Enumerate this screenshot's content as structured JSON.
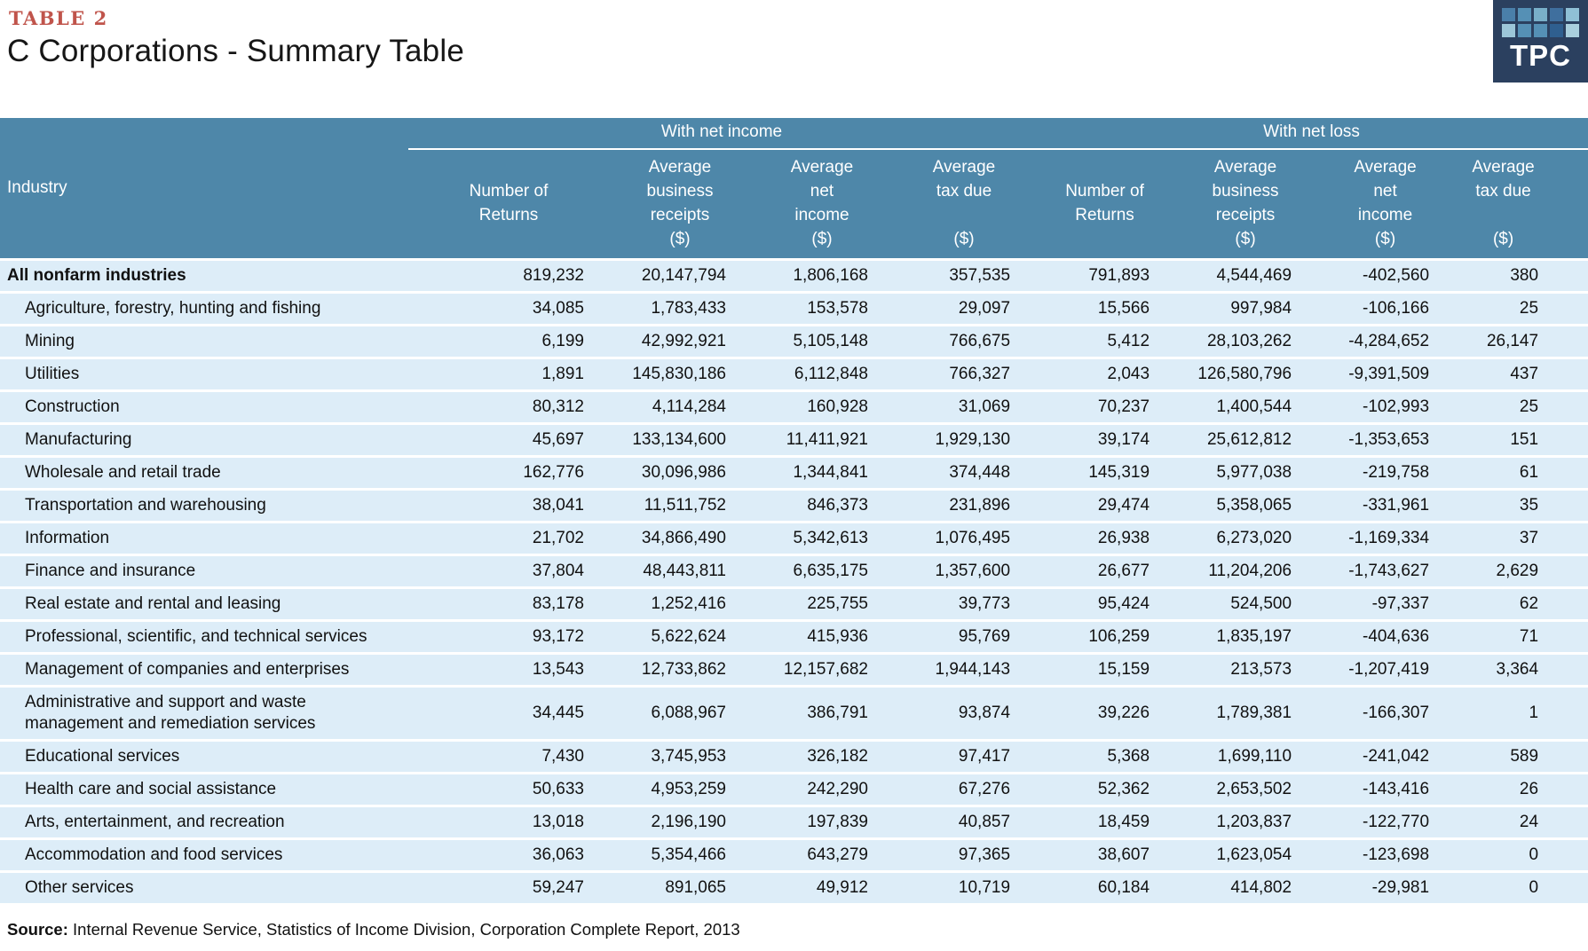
{
  "page": {
    "table_label": "TABLE 2",
    "title": "C Corporations - Summary Table"
  },
  "logo": {
    "text": "TPC",
    "bg": "#2b405f",
    "squares": [
      "#4a7fa9",
      "#5590b5",
      "#79afc9",
      "#3f6f9e",
      "#8fc0d6",
      "#9cc6d8",
      "#5590b5",
      "#5590b5",
      "#2f5f8f",
      "#a9cfdd"
    ]
  },
  "colors": {
    "header_bg": "#4e87a9",
    "row_bg": "#ddedf8",
    "accent_red": "#c0544b"
  },
  "table": {
    "industry_header": "Industry",
    "groups": [
      {
        "label": "With net income"
      },
      {
        "label": "With net loss"
      }
    ],
    "columns": [
      {
        "lines": [
          "",
          "Number of",
          "Returns",
          ""
        ]
      },
      {
        "lines": [
          "Average",
          "business",
          "receipts",
          "($)"
        ]
      },
      {
        "lines": [
          "Average",
          "net",
          "income",
          "($)"
        ]
      },
      {
        "lines": [
          "Average",
          "tax due",
          "",
          "($)"
        ]
      },
      {
        "lines": [
          "",
          "Number of",
          "Returns",
          ""
        ]
      },
      {
        "lines": [
          "Average",
          "business",
          "receipts",
          "($)"
        ]
      },
      {
        "lines": [
          "Average",
          "net",
          "income",
          "($)"
        ]
      },
      {
        "lines": [
          "Average",
          "tax due",
          "",
          "($)"
        ]
      }
    ],
    "rows": [
      {
        "industry": "All nonfarm industries",
        "indent": false,
        "bold": true,
        "values": [
          "819,232",
          "20,147,794",
          "1,806,168",
          "357,535",
          "791,893",
          "4,544,469",
          "-402,560",
          "380"
        ]
      },
      {
        "industry": "Agriculture, forestry, hunting and fishing",
        "indent": true,
        "bold": false,
        "values": [
          "34,085",
          "1,783,433",
          "153,578",
          "29,097",
          "15,566",
          "997,984",
          "-106,166",
          "25"
        ]
      },
      {
        "industry": "Mining",
        "indent": true,
        "bold": false,
        "values": [
          "6,199",
          "42,992,921",
          "5,105,148",
          "766,675",
          "5,412",
          "28,103,262",
          "-4,284,652",
          "26,147"
        ]
      },
      {
        "industry": "Utilities",
        "indent": true,
        "bold": false,
        "values": [
          "1,891",
          "145,830,186",
          "6,112,848",
          "766,327",
          "2,043",
          "126,580,796",
          "-9,391,509",
          "437"
        ]
      },
      {
        "industry": "Construction",
        "indent": true,
        "bold": false,
        "values": [
          "80,312",
          "4,114,284",
          "160,928",
          "31,069",
          "70,237",
          "1,400,544",
          "-102,993",
          "25"
        ]
      },
      {
        "industry": "Manufacturing",
        "indent": true,
        "bold": false,
        "values": [
          "45,697",
          "133,134,600",
          "11,411,921",
          "1,929,130",
          "39,174",
          "25,612,812",
          "-1,353,653",
          "151"
        ]
      },
      {
        "industry": "Wholesale and retail trade",
        "indent": true,
        "bold": false,
        "values": [
          "162,776",
          "30,096,986",
          "1,344,841",
          "374,448",
          "145,319",
          "5,977,038",
          "-219,758",
          "61"
        ]
      },
      {
        "industry": "Transportation and warehousing",
        "indent": true,
        "bold": false,
        "values": [
          "38,041",
          "11,511,752",
          "846,373",
          "231,896",
          "29,474",
          "5,358,065",
          "-331,961",
          "35"
        ]
      },
      {
        "industry": "Information",
        "indent": true,
        "bold": false,
        "values": [
          "21,702",
          "34,866,490",
          "5,342,613",
          "1,076,495",
          "26,938",
          "6,273,020",
          "-1,169,334",
          "37"
        ]
      },
      {
        "industry": "Finance and insurance",
        "indent": true,
        "bold": false,
        "values": [
          "37,804",
          "48,443,811",
          "6,635,175",
          "1,357,600",
          "26,677",
          "11,204,206",
          "-1,743,627",
          "2,629"
        ]
      },
      {
        "industry": "Real estate and rental and leasing",
        "indent": true,
        "bold": false,
        "values": [
          "83,178",
          "1,252,416",
          "225,755",
          "39,773",
          "95,424",
          "524,500",
          "-97,337",
          "62"
        ]
      },
      {
        "industry": "Professional, scientific, and technical services",
        "indent": true,
        "bold": false,
        "values": [
          "93,172",
          "5,622,624",
          "415,936",
          "95,769",
          "106,259",
          "1,835,197",
          "-404,636",
          "71"
        ]
      },
      {
        "industry": "Management of companies and enterprises",
        "indent": true,
        "bold": false,
        "values": [
          "13,543",
          "12,733,862",
          "12,157,682",
          "1,944,143",
          "15,159",
          "213,573",
          "-1,207,419",
          "3,364"
        ]
      },
      {
        "industry": "Administrative and support and waste management and remediation services",
        "indent": true,
        "bold": false,
        "values": [
          "34,445",
          "6,088,967",
          "386,791",
          "93,874",
          "39,226",
          "1,789,381",
          "-166,307",
          "1"
        ]
      },
      {
        "industry": "Educational services",
        "indent": true,
        "bold": false,
        "values": [
          "7,430",
          "3,745,953",
          "326,182",
          "97,417",
          "5,368",
          "1,699,110",
          "-241,042",
          "589"
        ]
      },
      {
        "industry": "Health care and social assistance",
        "indent": true,
        "bold": false,
        "values": [
          "50,633",
          "4,953,259",
          "242,290",
          "67,276",
          "52,362",
          "2,653,502",
          "-143,416",
          "26"
        ]
      },
      {
        "industry": "Arts, entertainment, and recreation",
        "indent": true,
        "bold": false,
        "values": [
          "13,018",
          "2,196,190",
          "197,839",
          "40,857",
          "18,459",
          "1,203,837",
          "-122,770",
          "24"
        ]
      },
      {
        "industry": "Accommodation and food services",
        "indent": true,
        "bold": false,
        "values": [
          "36,063",
          "5,354,466",
          "643,279",
          "97,365",
          "38,607",
          "1,623,054",
          "-123,698",
          "0"
        ]
      },
      {
        "industry": "Other services",
        "indent": true,
        "bold": false,
        "values": [
          "59,247",
          "891,065",
          "49,912",
          "10,719",
          "60,184",
          "414,802",
          "-29,981",
          "0"
        ]
      }
    ]
  },
  "source": {
    "label": "Source:",
    "text": "Internal Revenue Service, Statistics of Income Division, Corporation Complete Report, 2013"
  }
}
